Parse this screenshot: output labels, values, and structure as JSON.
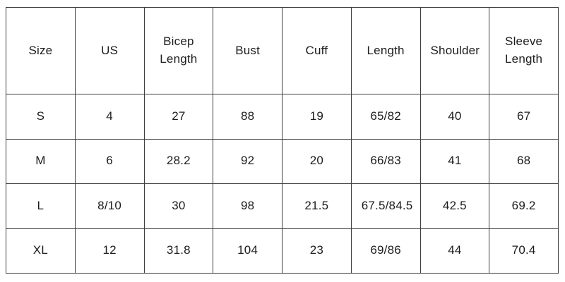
{
  "size_chart": {
    "columns": [
      "Size",
      "US",
      "Bicep Length",
      "Bust",
      "Cuff",
      "Length",
      "Shoulder",
      "Sleeve Length"
    ],
    "rows": [
      {
        "size": "S",
        "us": "4",
        "bicep_length": "27",
        "bust": "88",
        "cuff": "19",
        "length": "65/82",
        "shoulder": "40",
        "sleeve_length": "67"
      },
      {
        "size": "M",
        "us": "6",
        "bicep_length": "28.2",
        "bust": "92",
        "cuff": "20",
        "length": "66/83",
        "shoulder": "41",
        "sleeve_length": "68"
      },
      {
        "size": "L",
        "us": "8/10",
        "bicep_length": "30",
        "bust": "98",
        "cuff": "21.5",
        "length": "67.5/84.5",
        "shoulder": "42.5",
        "sleeve_length": "69.2"
      },
      {
        "size": "XL",
        "us": "12",
        "bicep_length": "31.8",
        "bust": "104",
        "cuff": "23",
        "length": "69/86",
        "shoulder": "44",
        "sleeve_length": "70.4"
      }
    ]
  },
  "colors": {
    "border": "#3d3d3d",
    "text": "#1c1c1c",
    "background": "#ffffff"
  }
}
